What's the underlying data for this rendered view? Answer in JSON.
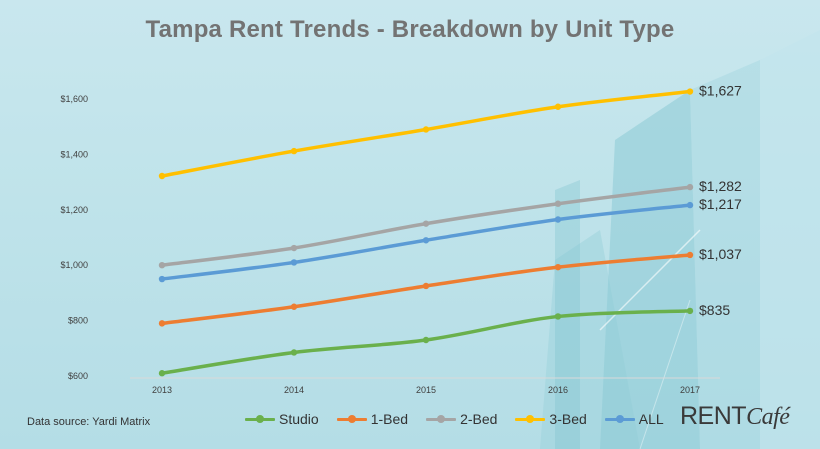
{
  "title": "Tampa Rent Trends - Breakdown by Unit Type",
  "source": "Data source:  Yardi Matrix",
  "logo": {
    "text_main": "RENT",
    "text_script": "Café"
  },
  "colors": {
    "Studio": "#6ab04c",
    "1-Bed": "#ed7d31",
    "2-Bed": "#a5a5a5",
    "3-Bed": "#ffc000",
    "ALL": "#5b9bd5"
  },
  "chart_data": {
    "type": "line",
    "x": [
      "2013",
      "2014",
      "2015",
      "2016",
      "2017"
    ],
    "ylim": [
      600,
      1700
    ],
    "yticks": [
      "$600",
      "$800",
      "$1,000",
      "$1,200",
      "$1,400",
      "$1,600"
    ],
    "ytick_values": [
      600,
      800,
      1000,
      1200,
      1400,
      1600
    ],
    "grid": false,
    "legend_position": "bottom",
    "series": [
      {
        "name": "Studio",
        "values": [
          610,
          685,
          730,
          815,
          835
        ],
        "end_label": "$835"
      },
      {
        "name": "1-Bed",
        "values": [
          790,
          850,
          925,
          993,
          1037
        ],
        "end_label": "$1,037"
      },
      {
        "name": "2-Bed",
        "values": [
          1000,
          1062,
          1150,
          1222,
          1282
        ],
        "end_label": "$1,282"
      },
      {
        "name": "3-Bed",
        "values": [
          1322,
          1412,
          1490,
          1572,
          1627
        ],
        "end_label": "$1,627"
      },
      {
        "name": "ALL",
        "values": [
          950,
          1010,
          1090,
          1165,
          1217
        ],
        "end_label": "$1,217"
      }
    ]
  }
}
